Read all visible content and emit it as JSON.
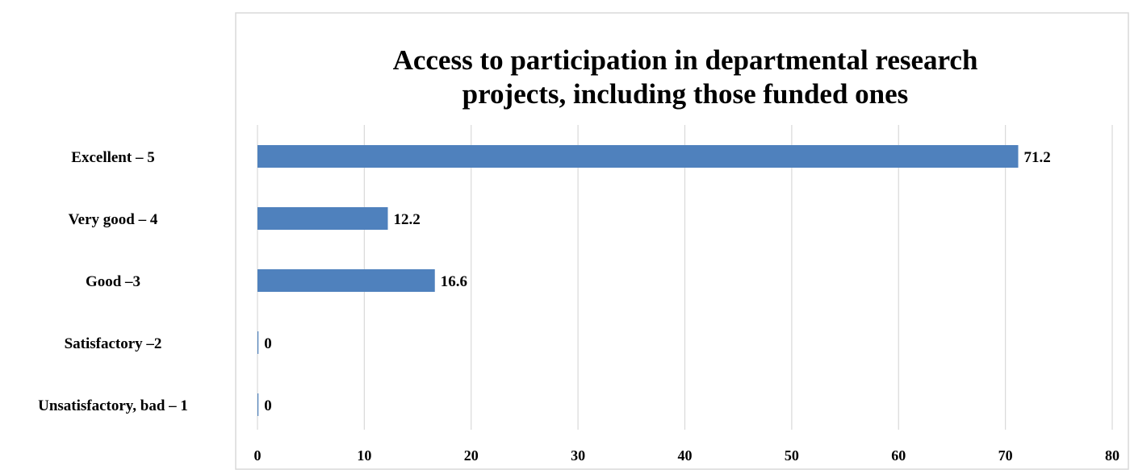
{
  "chart_data": {
    "type": "bar",
    "orientation": "horizontal",
    "title_lines": [
      "Access to participation in departmental research",
      "projects, including  those funded ones"
    ],
    "categories": [
      "Excellent – 5",
      "Very good – 4",
      "Good –3",
      "Satisfactory –2",
      "Unsatisfactory, bad – 1"
    ],
    "values": [
      71.2,
      12.2,
      16.6,
      0,
      0
    ],
    "data_labels": [
      "71.2",
      "12.2",
      "16.6",
      "0",
      "0"
    ],
    "xlim": [
      0,
      80
    ],
    "xticks": [
      0,
      10,
      20,
      30,
      40,
      50,
      60,
      70,
      80
    ],
    "xtick_labels": [
      "0",
      "10",
      "20",
      "30",
      "40",
      "50",
      "60",
      "70",
      "80"
    ],
    "grid": true,
    "legend": "none",
    "bar_color": "#4f81bd",
    "grid_color": "#d9d9d9",
    "border_color": "#d9d9d9"
  }
}
